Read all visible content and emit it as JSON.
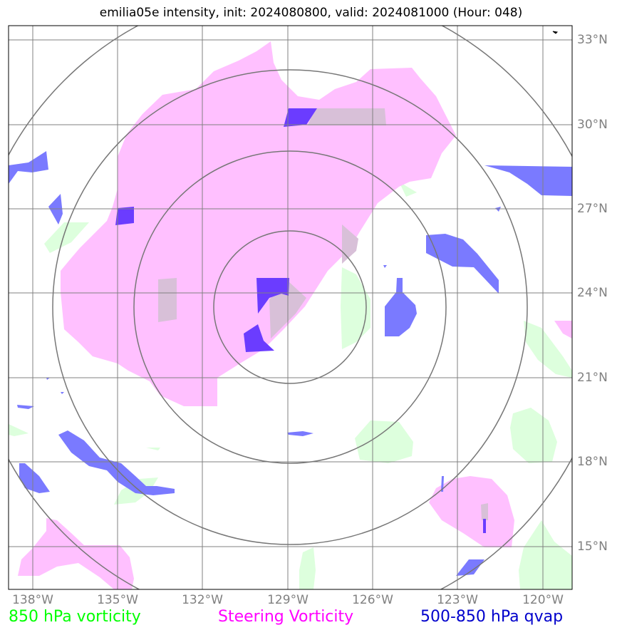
{
  "title": "emilia05e intensity, init: 2024080800, valid: 2024081000 (Hour: 048)",
  "storm": "emilia05e",
  "init_time": "2024080800",
  "valid_time": "2024081000",
  "forecast_hour": "048",
  "map": {
    "lon_range": [
      -138.9,
      -118.9
    ],
    "lat_range": [
      13.6,
      33.6
    ],
    "center": {
      "lon": -129.0,
      "lat": 23.6
    },
    "range_rings_deg": [
      2.7,
      5.5,
      8.4,
      11.3
    ],
    "grid_color": "#808080"
  },
  "lon_ticks": [
    "138°W",
    "135°W",
    "132°W",
    "129°W",
    "126°W",
    "123°W",
    "120°W"
  ],
  "lat_ticks": [
    "33°N",
    "30°N",
    "27°N",
    "24°N",
    "21°N",
    "18°N",
    "15°N"
  ],
  "legend": {
    "green": {
      "label": "850 hPa vorticity",
      "color": "#00ff00"
    },
    "magenta": {
      "label": "Steering Vorticity",
      "color": "#ff00ff"
    },
    "blue": {
      "label": "500-850 hPa qvap",
      "color": "#0000cc"
    }
  },
  "fills": {
    "green": "#ddffdd",
    "magenta": "#ffc0ff",
    "blue": "#7a7aff",
    "overlap": "#d8c0d8",
    "dark_blue": "#6b3cff"
  }
}
